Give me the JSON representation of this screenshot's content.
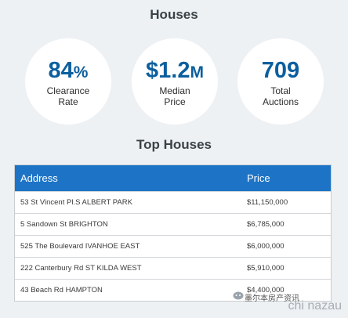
{
  "houses_title": "Houses",
  "stats": [
    {
      "value": "84",
      "unit": "%",
      "label_line1": "Clearance",
      "label_line2": "Rate"
    },
    {
      "value": "$1.2",
      "unit": "M",
      "label_line1": "Median",
      "label_line2": "Price"
    },
    {
      "value": "709",
      "unit": "",
      "label_line1": "Total",
      "label_line2": "Auctions"
    }
  ],
  "top_title": "Top Houses",
  "table": {
    "headers": {
      "address": "Address",
      "price": "Price"
    },
    "rows": [
      {
        "address": "53 St Vincent Pl.S ALBERT PARK",
        "price": "$11,150,000"
      },
      {
        "address": "5 Sandown St BRIGHTON",
        "price": "$6,785,000"
      },
      {
        "address": "525 The Boulevard IVANHOE EAST",
        "price": "$6,000,000"
      },
      {
        "address": "222 Canterbury Rd ST KILDA WEST",
        "price": "$5,910,000"
      },
      {
        "address": "43 Beach Rd HAMPTON",
        "price": "$4,400,000"
      }
    ]
  },
  "watermark": {
    "cn": "墨尔本房产资讯",
    "latin": "chi nazau"
  },
  "colors": {
    "accent": "#0b5f9e",
    "header": "#1d74c6",
    "background": "#eef1f4"
  }
}
